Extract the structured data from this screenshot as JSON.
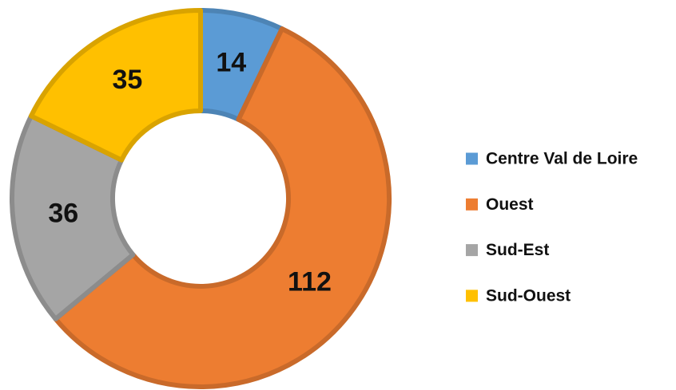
{
  "chart_data": {
    "type": "donut",
    "categories": [
      "Centre Val de Loire",
      "Ouest",
      "Sud-Est",
      "Sud-Ouest"
    ],
    "values": [
      14,
      112,
      36,
      35
    ],
    "colors": [
      "#5b9bd5",
      "#ed7d31",
      "#a5a5a5",
      "#ffc000"
    ],
    "legend": "right"
  }
}
